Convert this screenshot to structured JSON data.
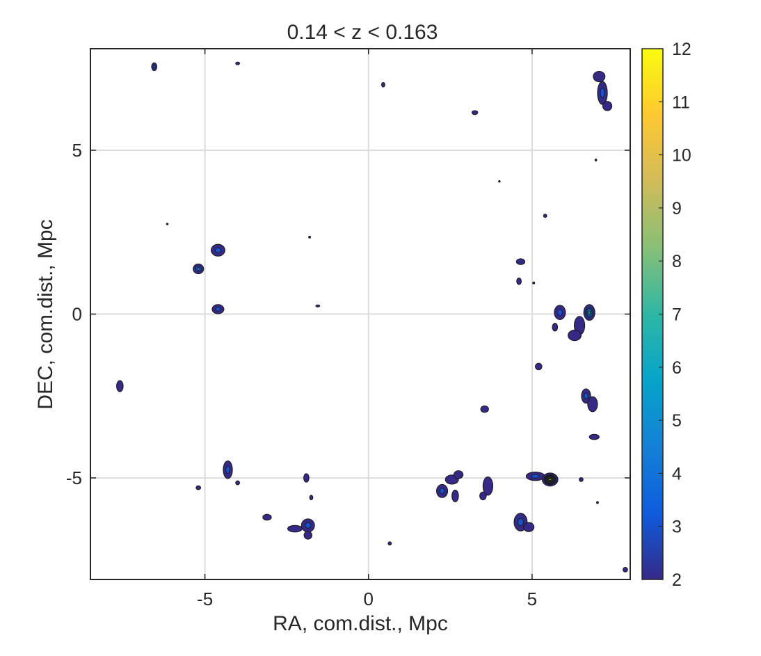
{
  "chart_data": {
    "type": "heatmap",
    "subtype": "contour-density-map",
    "title": "0.14 < z < 0.163",
    "xlabel": "RA, com.dist., Mpc",
    "ylabel": "DEC, com.dist., Mpc",
    "xlim": [
      -8.5,
      8
    ],
    "ylim": [
      -8.1,
      8.1
    ],
    "xticks": [
      -5,
      0,
      5
    ],
    "xticklabels": [
      "-5",
      "0",
      "5"
    ],
    "yticks": [
      -5,
      0,
      5
    ],
    "yticklabels": [
      "-5",
      "0",
      "5"
    ],
    "grid": true,
    "colorbar": {
      "colormap": "parula",
      "range": [
        2,
        12
      ],
      "ticks": [
        2,
        3,
        4,
        5,
        6,
        7,
        8,
        9,
        10,
        11,
        12
      ],
      "ticklabels": [
        "2",
        "3",
        "4",
        "5",
        "6",
        "7",
        "8",
        "9",
        "10",
        "11",
        "12"
      ],
      "stops": [
        "#352a87",
        "#0f5cdd",
        "#1481d6",
        "#06a4ca",
        "#2eb7a4",
        "#87bf77",
        "#d1bb59",
        "#fec832",
        "#f9fb0e"
      ]
    },
    "base_level": 2,
    "blobs": [
      {
        "x": -6.55,
        "y": 7.55,
        "rx": 0.08,
        "ry": 0.12,
        "peak": 3
      },
      {
        "x": -4.0,
        "y": 7.65,
        "rx": 0.06,
        "ry": 0.04,
        "peak": 2
      },
      {
        "x": 0.45,
        "y": 7.0,
        "rx": 0.05,
        "ry": 0.07,
        "peak": 2
      },
      {
        "x": 3.25,
        "y": 6.15,
        "rx": 0.09,
        "ry": 0.06,
        "peak": 2
      },
      {
        "x": 7.15,
        "y": 6.75,
        "rx": 0.15,
        "ry": 0.35,
        "peak": 3
      },
      {
        "x": 7.05,
        "y": 7.25,
        "rx": 0.18,
        "ry": 0.16,
        "peak": 2
      },
      {
        "x": 7.3,
        "y": 6.35,
        "rx": 0.14,
        "ry": 0.14,
        "peak": 2
      },
      {
        "x": 6.95,
        "y": 4.7,
        "rx": 0.02,
        "ry": 0.03,
        "peak": 2
      },
      {
        "x": 4.0,
        "y": 4.05,
        "rx": 0.02,
        "ry": 0.02,
        "peak": 2
      },
      {
        "x": 5.4,
        "y": 3.0,
        "rx": 0.05,
        "ry": 0.05,
        "peak": 2
      },
      {
        "x": -6.15,
        "y": 2.75,
        "rx": 0.02,
        "ry": 0.02,
        "peak": 2
      },
      {
        "x": -1.8,
        "y": 2.35,
        "rx": 0.03,
        "ry": 0.03,
        "peak": 2
      },
      {
        "x": -4.6,
        "y": 1.95,
        "rx": 0.21,
        "ry": 0.18,
        "peak": 3
      },
      {
        "x": -5.2,
        "y": 1.38,
        "rx": 0.16,
        "ry": 0.15,
        "peak": 4
      },
      {
        "x": 4.65,
        "y": 1.6,
        "rx": 0.13,
        "ry": 0.09,
        "peak": 2
      },
      {
        "x": 4.6,
        "y": 1.0,
        "rx": 0.07,
        "ry": 0.1,
        "peak": 2
      },
      {
        "x": 5.05,
        "y": 0.95,
        "rx": 0.03,
        "ry": 0.03,
        "peak": 2
      },
      {
        "x": -4.6,
        "y": 0.15,
        "rx": 0.18,
        "ry": 0.14,
        "peak": 3
      },
      {
        "x": -1.55,
        "y": 0.25,
        "rx": 0.06,
        "ry": 0.03,
        "peak": 2
      },
      {
        "x": 5.85,
        "y": 0.05,
        "rx": 0.17,
        "ry": 0.22,
        "peak": 3
      },
      {
        "x": 6.75,
        "y": 0.05,
        "rx": 0.17,
        "ry": 0.24,
        "peak": 6
      },
      {
        "x": 6.45,
        "y": -0.35,
        "rx": 0.16,
        "ry": 0.28,
        "peak": 2
      },
      {
        "x": 6.3,
        "y": -0.65,
        "rx": 0.2,
        "ry": 0.16,
        "peak": 2
      },
      {
        "x": 5.7,
        "y": -0.4,
        "rx": 0.08,
        "ry": 0.12,
        "peak": 2
      },
      {
        "x": 5.2,
        "y": -1.6,
        "rx": 0.1,
        "ry": 0.1,
        "peak": 2
      },
      {
        "x": -7.6,
        "y": -2.2,
        "rx": 0.1,
        "ry": 0.17,
        "peak": 2
      },
      {
        "x": 6.65,
        "y": -2.5,
        "rx": 0.14,
        "ry": 0.22,
        "peak": 3
      },
      {
        "x": 6.85,
        "y": -2.75,
        "rx": 0.15,
        "ry": 0.23,
        "peak": 2
      },
      {
        "x": 3.55,
        "y": -2.9,
        "rx": 0.12,
        "ry": 0.1,
        "peak": 2
      },
      {
        "x": 6.9,
        "y": -3.75,
        "rx": 0.15,
        "ry": 0.08,
        "peak": 2
      },
      {
        "x": -4.3,
        "y": -4.75,
        "rx": 0.14,
        "ry": 0.27,
        "peak": 3
      },
      {
        "x": -4.0,
        "y": -5.15,
        "rx": 0.06,
        "ry": 0.06,
        "peak": 2
      },
      {
        "x": -5.2,
        "y": -5.3,
        "rx": 0.07,
        "ry": 0.06,
        "peak": 2
      },
      {
        "x": -1.9,
        "y": -5.0,
        "rx": 0.08,
        "ry": 0.13,
        "peak": 2
      },
      {
        "x": -1.75,
        "y": -5.6,
        "rx": 0.05,
        "ry": 0.07,
        "peak": 2
      },
      {
        "x": 2.25,
        "y": -5.4,
        "rx": 0.17,
        "ry": 0.2,
        "peak": 3
      },
      {
        "x": 2.55,
        "y": -5.05,
        "rx": 0.2,
        "ry": 0.14,
        "peak": 2
      },
      {
        "x": 2.75,
        "y": -4.9,
        "rx": 0.14,
        "ry": 0.12,
        "peak": 2
      },
      {
        "x": 2.65,
        "y": -5.55,
        "rx": 0.1,
        "ry": 0.18,
        "peak": 2
      },
      {
        "x": 3.65,
        "y": -5.25,
        "rx": 0.15,
        "ry": 0.28,
        "peak": 2
      },
      {
        "x": 3.5,
        "y": -5.55,
        "rx": 0.1,
        "ry": 0.12,
        "peak": 2
      },
      {
        "x": 5.1,
        "y": -4.95,
        "rx": 0.28,
        "ry": 0.13,
        "peak": 3
      },
      {
        "x": 5.55,
        "y": -5.05,
        "rx": 0.24,
        "ry": 0.2,
        "peak": 12
      },
      {
        "x": 6.5,
        "y": -5.05,
        "rx": 0.06,
        "ry": 0.06,
        "peak": 2
      },
      {
        "x": -3.1,
        "y": -6.2,
        "rx": 0.13,
        "ry": 0.09,
        "peak": 2
      },
      {
        "x": -1.85,
        "y": -6.45,
        "rx": 0.2,
        "ry": 0.2,
        "peak": 3
      },
      {
        "x": -2.25,
        "y": -6.55,
        "rx": 0.22,
        "ry": 0.1,
        "peak": 2
      },
      {
        "x": -1.85,
        "y": -6.75,
        "rx": 0.12,
        "ry": 0.12,
        "peak": 2
      },
      {
        "x": 4.65,
        "y": -6.35,
        "rx": 0.2,
        "ry": 0.27,
        "peak": 3
      },
      {
        "x": 4.9,
        "y": -6.5,
        "rx": 0.16,
        "ry": 0.14,
        "peak": 2
      },
      {
        "x": 0.65,
        "y": -7.0,
        "rx": 0.05,
        "ry": 0.05,
        "peak": 2
      },
      {
        "x": 7.0,
        "y": -5.75,
        "rx": 0.03,
        "ry": 0.03,
        "peak": 2
      },
      {
        "x": 7.85,
        "y": -7.8,
        "rx": 0.07,
        "ry": 0.07,
        "peak": 2
      }
    ]
  }
}
